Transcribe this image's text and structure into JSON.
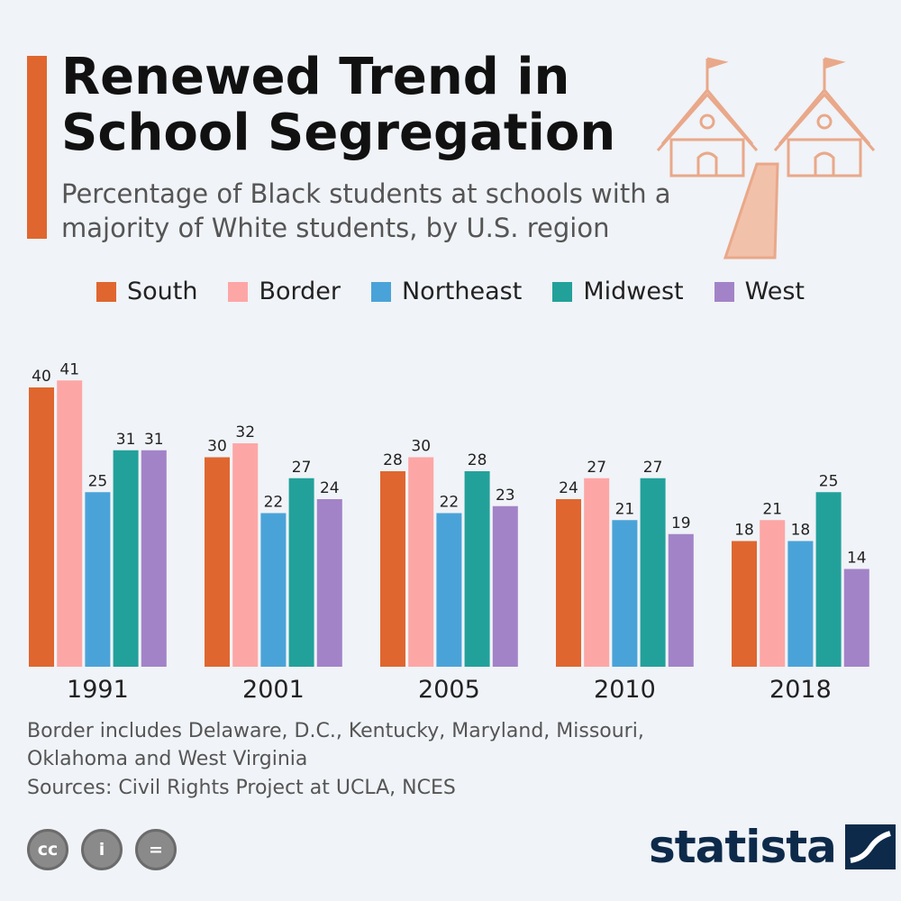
{
  "header": {
    "title": "Renewed Trend in School Segregation",
    "subtitle": "Percentage of Black students at schools with a majority of White students, by U.S. region"
  },
  "colors": {
    "accent": "#e0662f",
    "south": "#e0662f",
    "border": "#fda6a6",
    "northeast": "#4aa3d8",
    "midwest": "#22a19a",
    "west": "#a383c8"
  },
  "chart_data": {
    "type": "bar",
    "categories": [
      "1991",
      "2001",
      "2005",
      "2010",
      "2018"
    ],
    "series": [
      {
        "name": "South",
        "values": [
          40,
          30,
          28,
          24,
          18
        ]
      },
      {
        "name": "Border",
        "values": [
          41,
          32,
          30,
          27,
          21
        ]
      },
      {
        "name": "Northeast",
        "values": [
          25,
          22,
          22,
          21,
          18
        ]
      },
      {
        "name": "Midwest",
        "values": [
          31,
          27,
          28,
          27,
          25
        ]
      },
      {
        "name": "West",
        "values": [
          31,
          24,
          23,
          19,
          14
        ]
      }
    ],
    "ylim": [
      0,
      45
    ],
    "legend": "top-center",
    "grid": false
  },
  "footer": {
    "note": "Border includes Delaware, D.C., Kentucky, Maryland, Missouri, Oklahoma and West Virginia",
    "source": "Sources: Civil Rights Project at UCLA, NCES",
    "cc_icons": [
      "cc",
      "i",
      "="
    ],
    "brand": "statista"
  }
}
